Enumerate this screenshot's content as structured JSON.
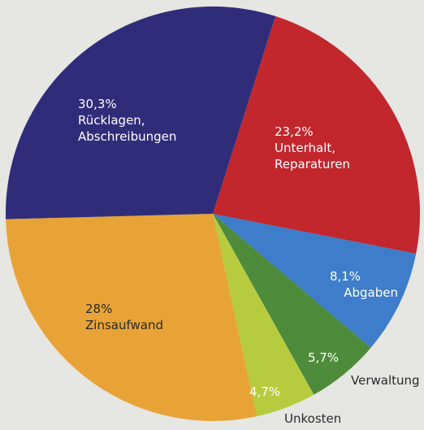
{
  "chart_data": {
    "type": "pie",
    "categories": [
      "Unterhalt, Reparaturen",
      "Abgaben",
      "Verwaltung",
      "Unkosten",
      "Zinsaufwand",
      "Rücklagen, Abschreibungen"
    ],
    "values": [
      23.2,
      8.1,
      5.7,
      4.7,
      28,
      30.3
    ],
    "value_labels": [
      "23,2%",
      "8,1%",
      "5,7%",
      "4,7%",
      "28%",
      "30,3%"
    ],
    "colors": [
      "#c1272d",
      "#3d7dca",
      "#4e8b3b",
      "#b6cc3e",
      "#e8a337",
      "#2f2d7a"
    ]
  }
}
